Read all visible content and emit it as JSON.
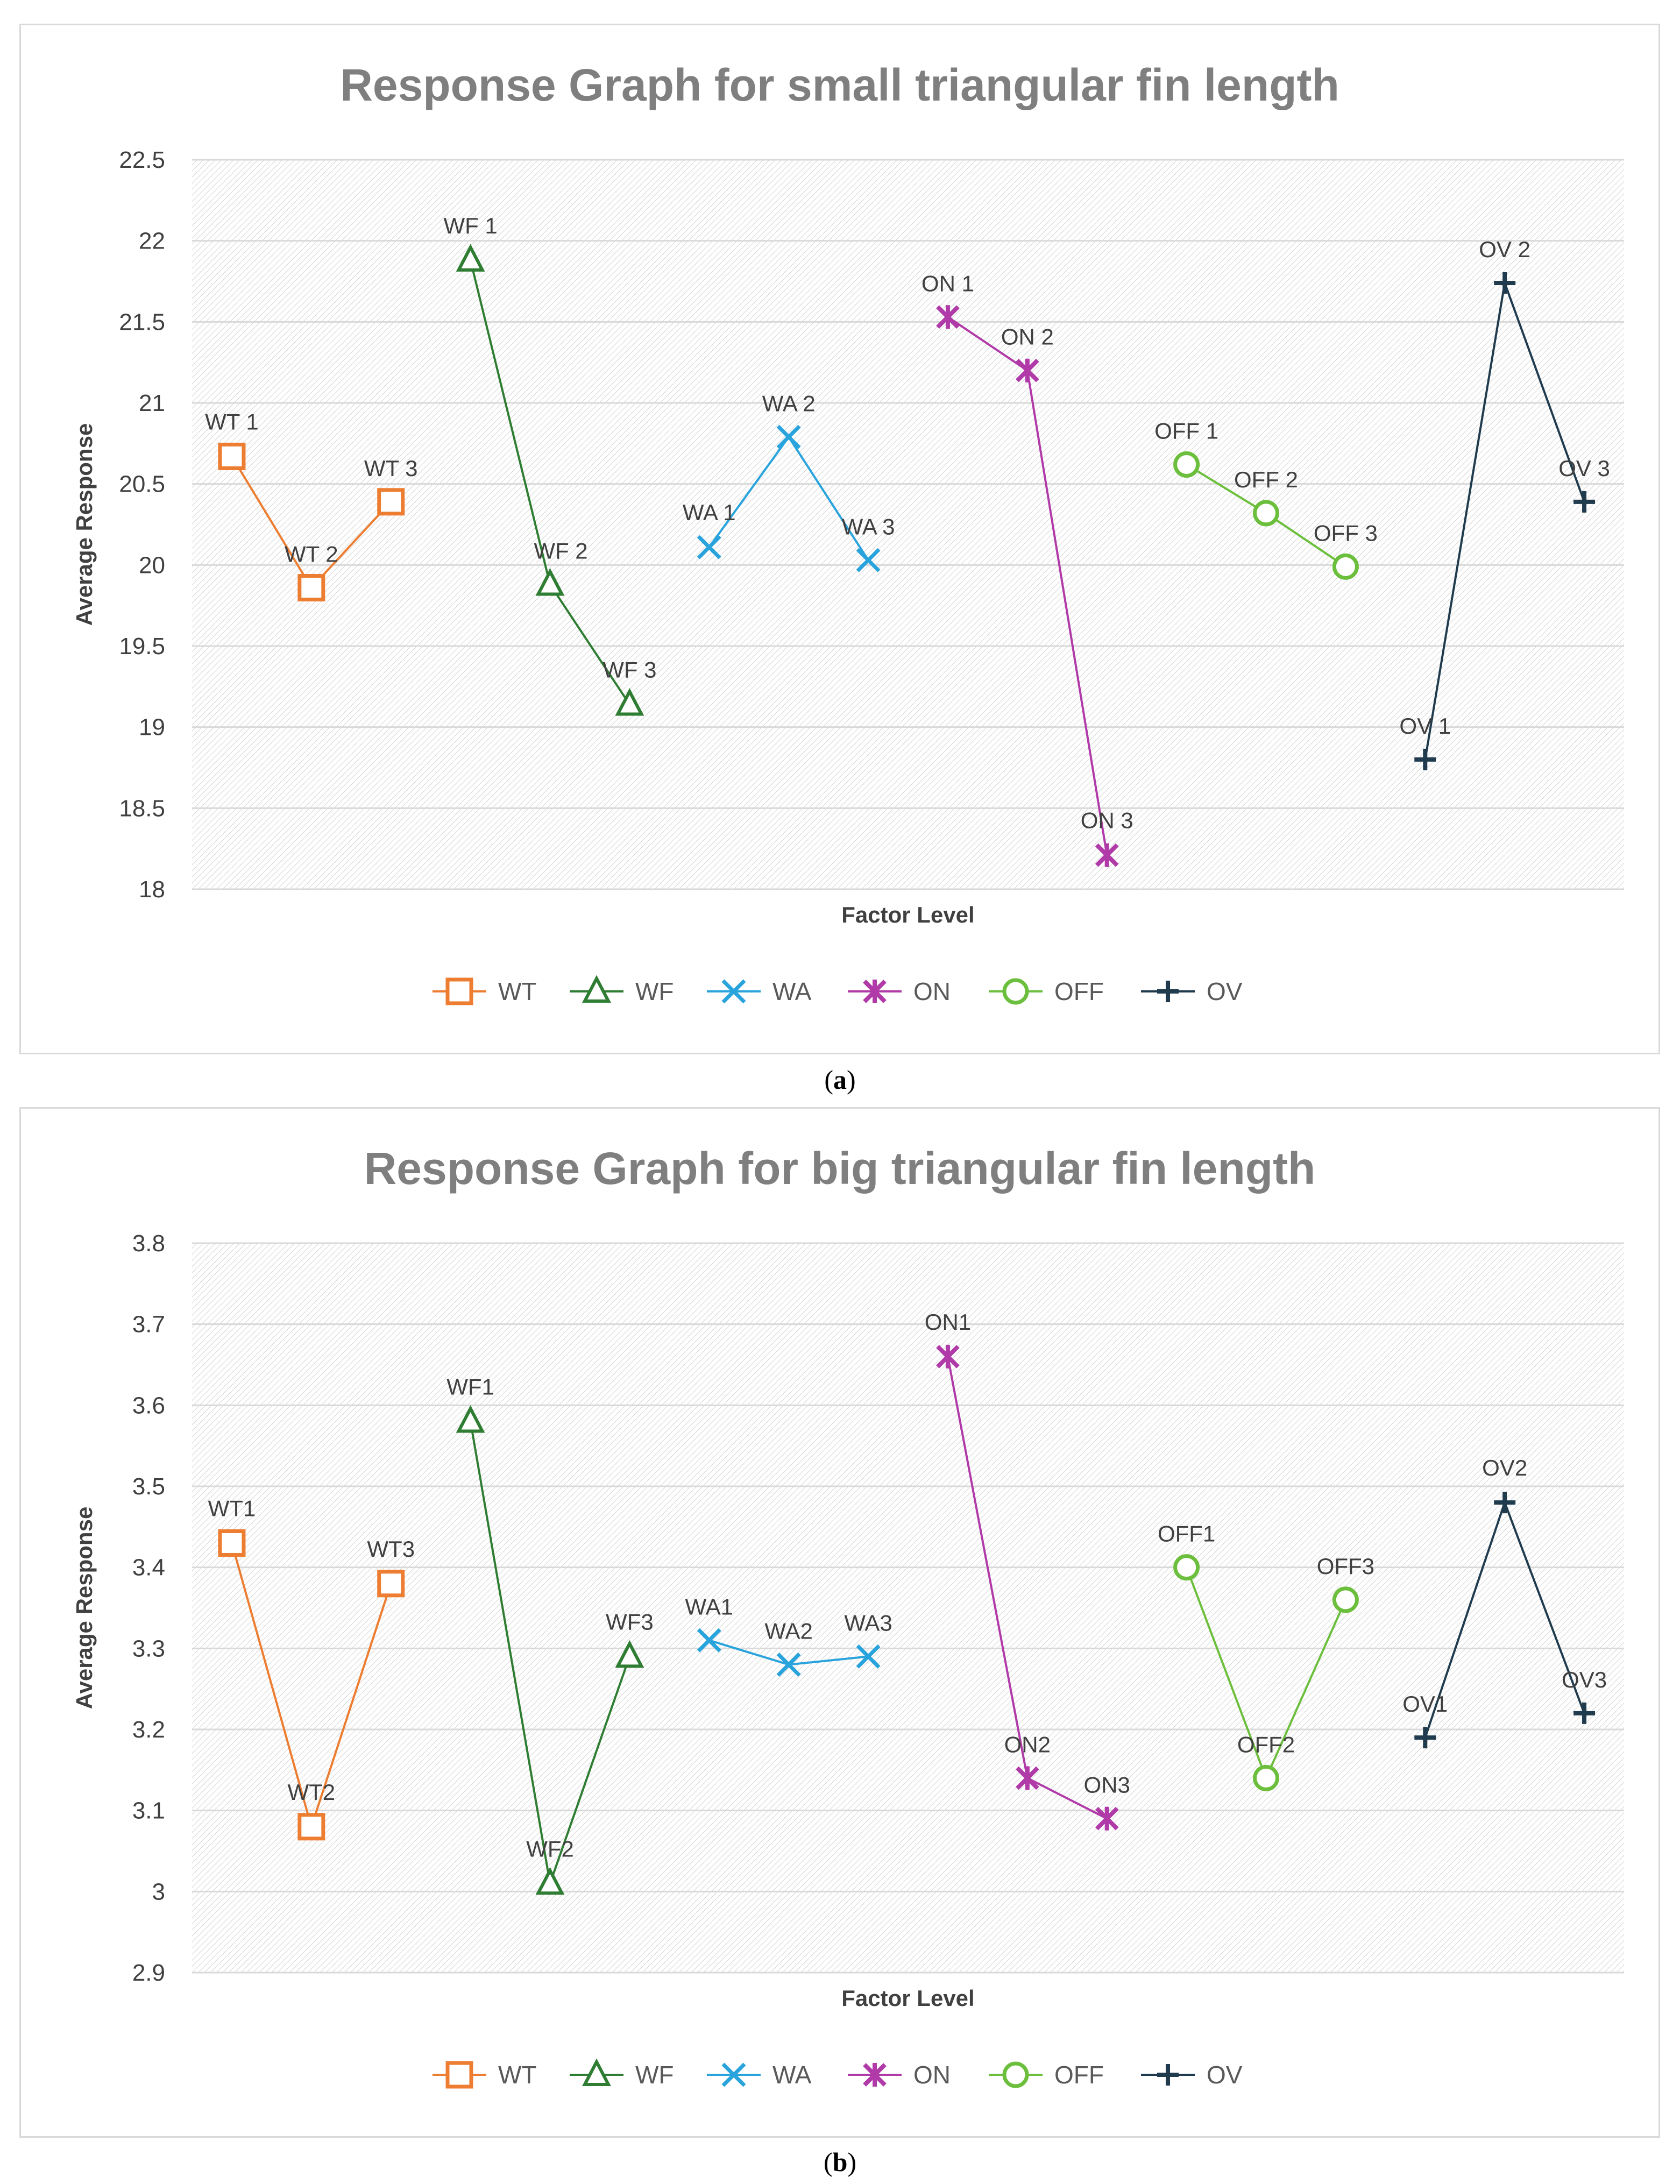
{
  "captions": {
    "a": "a",
    "b": "b"
  },
  "colors": {
    "WT": "#ed7d31",
    "WF": "#2e7d32",
    "WA": "#29a3dc",
    "ON": "#b03aa8",
    "OFF": "#6cbf3c",
    "OV": "#1f3b4d"
  },
  "chart_data": [
    {
      "type": "line",
      "title": "Response Graph for small triangular fin length",
      "xlabel": "Factor Level",
      "ylabel": "Average Response",
      "ylim": [
        18,
        22.5
      ],
      "ytick_step": 0.5,
      "ytick_labels": [
        "18",
        "18.5",
        "19",
        "19.5",
        "20",
        "20.5",
        "21",
        "21.5",
        "22",
        "22.5"
      ],
      "grid": true,
      "legend": "bottom",
      "series": [
        {
          "name": "WT",
          "marker": "square",
          "labels": [
            "WT 1",
            "WT 2",
            "WT 3"
          ],
          "values": [
            20.67,
            19.86,
            20.39
          ]
        },
        {
          "name": "WF",
          "marker": "triangle",
          "labels": [
            "WF 1",
            "WF 2",
            "WF 3"
          ],
          "values": [
            21.88,
            19.88,
            19.14
          ]
        },
        {
          "name": "WA",
          "marker": "x",
          "labels": [
            "WA 1",
            "WA 2",
            "WA 3"
          ],
          "values": [
            20.11,
            20.79,
            20.03
          ]
        },
        {
          "name": "ON",
          "marker": "star",
          "labels": [
            "ON 1",
            "ON 2",
            "ON 3"
          ],
          "values": [
            21.53,
            21.2,
            18.21
          ]
        },
        {
          "name": "OFF",
          "marker": "circle",
          "labels": [
            "OFF 1",
            "OFF 2",
            "OFF 3"
          ],
          "values": [
            20.62,
            20.32,
            19.99
          ]
        },
        {
          "name": "OV",
          "marker": "plus",
          "labels": [
            "OV 1",
            "OV 2",
            "OV 3"
          ],
          "values": [
            18.8,
            21.74,
            20.39
          ]
        }
      ]
    },
    {
      "type": "line",
      "title": "Response Graph for big triangular fin length",
      "xlabel": "Factor Level",
      "ylabel": "Average Response",
      "ylim": [
        2.9,
        3.8
      ],
      "ytick_step": 0.1,
      "ytick_labels": [
        "2.9",
        "3",
        "3.1",
        "3.2",
        "3.3",
        "3.4",
        "3.5",
        "3.6",
        "3.7",
        "3.8"
      ],
      "grid": true,
      "legend": "bottom",
      "series": [
        {
          "name": "WT",
          "marker": "square",
          "labels": [
            "WT1",
            "WT2",
            "WT3"
          ],
          "values": [
            3.43,
            3.08,
            3.38
          ]
        },
        {
          "name": "WF",
          "marker": "triangle",
          "labels": [
            "WF1",
            "WF2",
            "WF3"
          ],
          "values": [
            3.58,
            3.01,
            3.29
          ]
        },
        {
          "name": "WA",
          "marker": "x",
          "labels": [
            "WA1",
            "WA2",
            "WA3"
          ],
          "values": [
            3.31,
            3.28,
            3.29
          ]
        },
        {
          "name": "ON",
          "marker": "star",
          "labels": [
            "ON1",
            "ON2",
            "ON3"
          ],
          "values": [
            3.66,
            3.14,
            3.09
          ]
        },
        {
          "name": "OFF",
          "marker": "circle",
          "labels": [
            "OFF1",
            "OFF2",
            "OFF3"
          ],
          "values": [
            3.4,
            3.14,
            3.36
          ]
        },
        {
          "name": "OV",
          "marker": "plus",
          "labels": [
            "OV1",
            "OV2",
            "OV3"
          ],
          "values": [
            3.19,
            3.48,
            3.22
          ]
        }
      ]
    }
  ]
}
